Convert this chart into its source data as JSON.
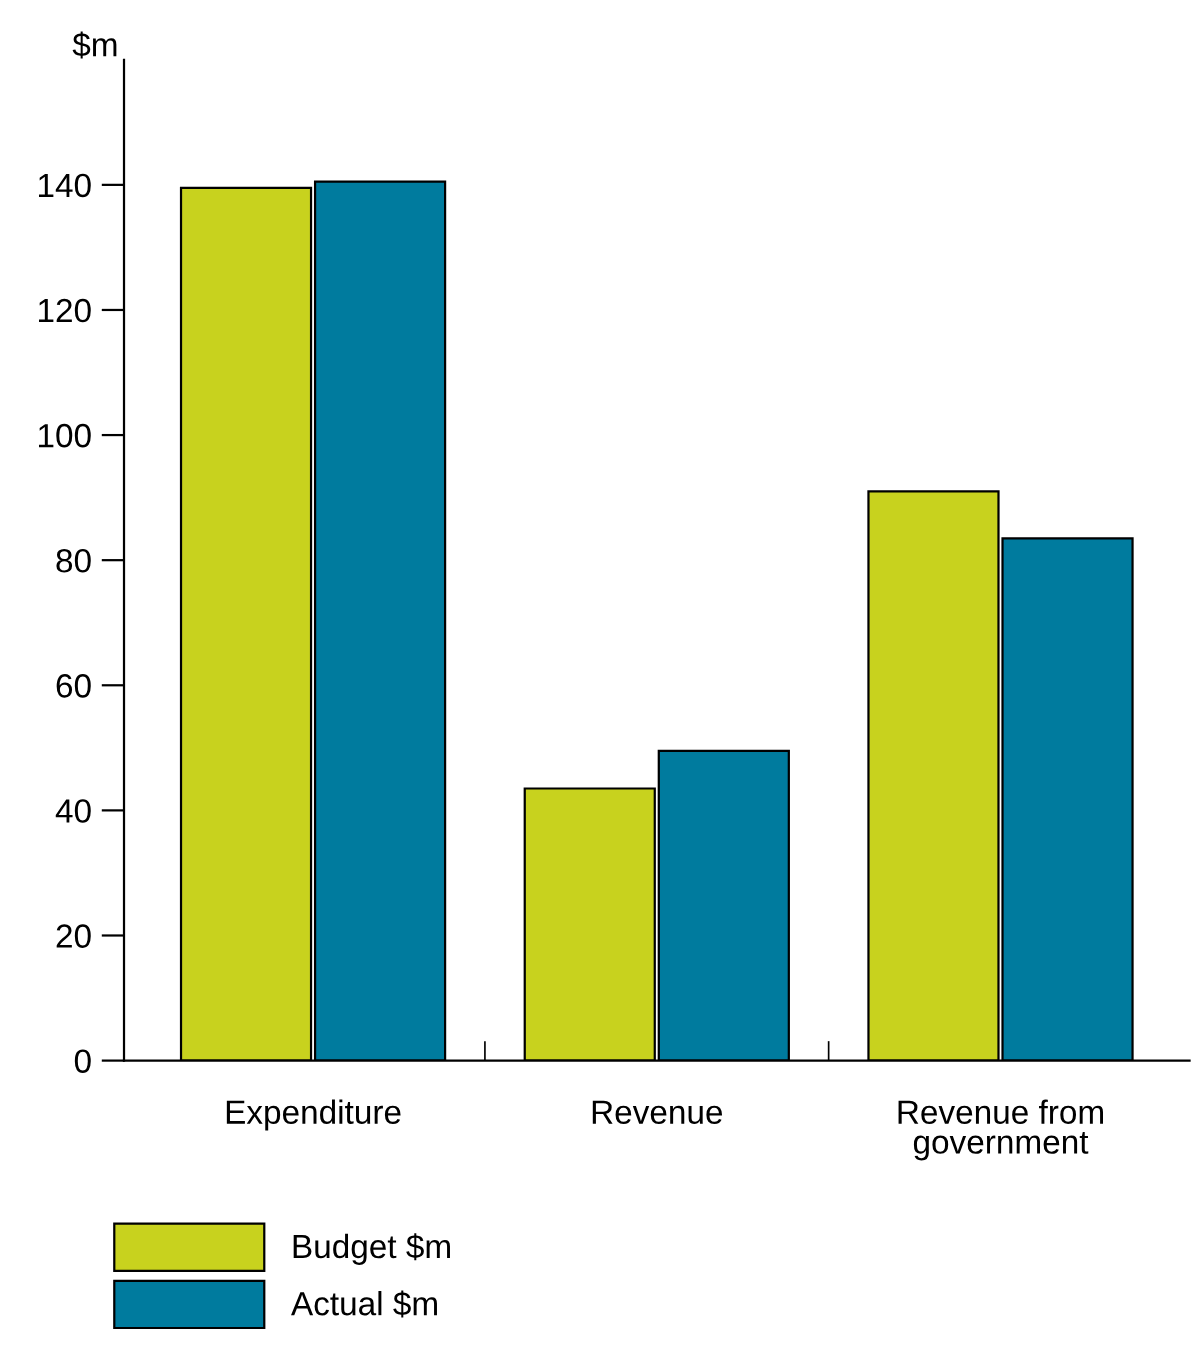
{
  "chart_data": {
    "type": "bar",
    "ylabel": "$m",
    "categories": [
      "Expenditure",
      "Revenue",
      "Revenue from\ngovernment"
    ],
    "series": [
      {
        "name": "Budget $m",
        "color": "#c8d21e",
        "values": [
          139.5,
          43.5,
          91
        ]
      },
      {
        "name": "Actual $m",
        "color": "#007b9e",
        "values": [
          140.5,
          49.5,
          83.5
        ]
      }
    ],
    "ylim": [
      0,
      160
    ],
    "yticks": [
      0,
      20,
      40,
      60,
      80,
      100,
      120,
      140
    ],
    "grid": false,
    "legend": "bottom left"
  }
}
